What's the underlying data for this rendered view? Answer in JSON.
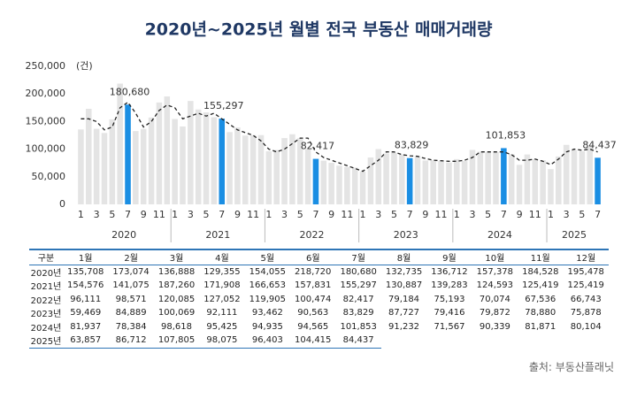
{
  "chart_data": {
    "type": "bar",
    "title": "2020년~2025년 월별 전국 부동산 매매거래량",
    "unit_label": "(건)",
    "categories": [
      "1",
      null,
      "3",
      null,
      "5",
      null,
      "7",
      null,
      "9",
      null,
      "11",
      null,
      "1",
      null,
      "3",
      null,
      "5",
      null,
      "7",
      null,
      "9",
      null,
      "11",
      null,
      "1",
      null,
      "3",
      null,
      "5",
      null,
      "7",
      null,
      "9",
      null,
      "11",
      null,
      "1",
      null,
      "3",
      null,
      "5",
      null,
      "7",
      null,
      "9",
      null,
      "11",
      null,
      "1",
      null,
      "3",
      null,
      "5",
      null,
      "7",
      null,
      "9",
      null,
      "11",
      null,
      "1",
      null,
      "3",
      null,
      "5",
      null,
      "7"
    ],
    "year_labels": [
      "2020",
      "2021",
      "2022",
      "2023",
      "2024",
      "2025"
    ],
    "values": [
      135708,
      173074,
      136888,
      129355,
      154055,
      218720,
      180680,
      132735,
      136712,
      157378,
      184528,
      195478,
      154576,
      141075,
      187260,
      171908,
      166653,
      157831,
      155297,
      130887,
      139283,
      124593,
      125419,
      125419,
      96111,
      98571,
      120085,
      127052,
      119905,
      100474,
      82417,
      79184,
      75193,
      70074,
      67536,
      66743,
      59469,
      84889,
      100069,
      92111,
      93462,
      90563,
      83829,
      87727,
      79416,
      79872,
      78880,
      75878,
      81937,
      78384,
      98618,
      95425,
      94935,
      94565,
      101853,
      91232,
      71567,
      90339,
      81871,
      80104,
      63857,
      86712,
      107805,
      98075,
      96403,
      104415,
      84437
    ],
    "value_labels": [
      null,
      null,
      null,
      null,
      null,
      null,
      "180,680",
      null,
      null,
      null,
      null,
      null,
      null,
      null,
      null,
      null,
      null,
      null,
      "155,297",
      null,
      null,
      null,
      null,
      null,
      null,
      null,
      null,
      null,
      null,
      null,
      "82,417",
      null,
      null,
      null,
      null,
      null,
      null,
      null,
      null,
      null,
      null,
      null,
      "83,829",
      null,
      null,
      null,
      null,
      null,
      null,
      null,
      null,
      null,
      null,
      null,
      "101,853",
      null,
      null,
      null,
      null,
      null,
      null,
      null,
      null,
      null,
      null,
      null,
      "84,437"
    ],
    "trend_values": [
      155000,
      155000,
      150000,
      135000,
      140000,
      175000,
      185000,
      165000,
      140000,
      150000,
      170000,
      180000,
      175000,
      155000,
      160000,
      165000,
      160000,
      165000,
      155000,
      145000,
      135000,
      130000,
      125000,
      115000,
      100000,
      95000,
      100000,
      110000,
      120000,
      120000,
      95000,
      85000,
      80000,
      75000,
      70000,
      65000,
      60000,
      70000,
      80000,
      95000,
      95000,
      90000,
      88000,
      87000,
      83000,
      80000,
      79000,
      78000,
      78000,
      80000,
      85000,
      95000,
      95000,
      95000,
      95000,
      90000,
      80000,
      80000,
      82000,
      78000,
      72000,
      82000,
      95000,
      100000,
      98000,
      100000,
      95000
    ],
    "color": "#e4e4e4",
    "highlight_category": "7",
    "highlight_color": "#1a8ee3",
    "line_color": "#222222",
    "ylim": [
      0,
      250000
    ],
    "yticks": [
      0,
      {
        "value": 50000,
        "label": "50,000"
      },
      {
        "value": 100000,
        "label": "100,000"
      },
      {
        "value": 150000,
        "label": "150,000"
      },
      {
        "value": 200000,
        "label": "200,000"
      },
      {
        "value": 250000,
        "label": "250,000"
      }
    ]
  },
  "table": {
    "header": [
      "구분",
      "1월",
      "2월",
      "3월",
      "4월",
      "5월",
      "6월",
      "7월",
      "8월",
      "9월",
      "10월",
      "11월",
      "12월"
    ],
    "rows": [
      [
        "2020년",
        "135,708",
        "173,074",
        "136,888",
        "129,355",
        "154,055",
        "218,720",
        "180,680",
        "132,735",
        "136,712",
        "157,378",
        "184,528",
        "195,478"
      ],
      [
        "2021년",
        "154,576",
        "141,075",
        "187,260",
        "171,908",
        "166,653",
        "157,831",
        "155,297",
        "130,887",
        "139,283",
        "124,593",
        "125,419",
        "125,419"
      ],
      [
        "2022년",
        "96,111",
        "98,571",
        "120,085",
        "127,052",
        "119,905",
        "100,474",
        "82,417",
        "79,184",
        "75,193",
        "70,074",
        "67,536",
        "66,743"
      ],
      [
        "2023년",
        "59,469",
        "84,889",
        "100,069",
        "92,111",
        "93,462",
        "90,563",
        "83,829",
        "87,727",
        "79,416",
        "79,872",
        "78,880",
        "75,878"
      ],
      [
        "2024년",
        "81,937",
        "78,384",
        "98,618",
        "95,425",
        "94,935",
        "94,565",
        "101,853",
        "91,232",
        "71,567",
        "90,339",
        "81,871",
        "80,104"
      ],
      [
        "2025년",
        "63,857",
        "86,712",
        "107,805",
        "98,075",
        "96,403",
        "104,415",
        "84,437"
      ]
    ]
  },
  "source": "출처: 부동산플래닛"
}
